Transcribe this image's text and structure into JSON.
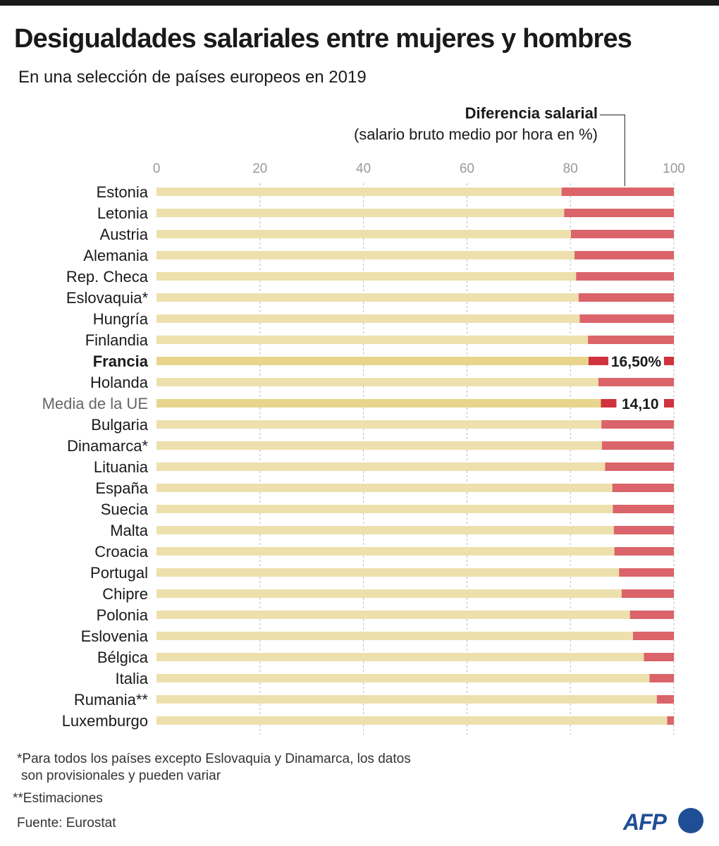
{
  "title": "Desigualdades salariales entre mujeres y hombres",
  "subtitle": "En una selección de países europeos en 2019",
  "legend": {
    "title": "Diferencia salarial",
    "subtitle": "(salario bruto medio por hora en %)"
  },
  "footnotes": {
    "note1_line1": "*Para todos los países excepto Eslovaquia y Dinamarca, los datos",
    "note1_line2": "son provisionales y pueden variar",
    "note2": "**Estimaciones",
    "source": "Fuente: Eurostat"
  },
  "logo": {
    "text": "AFP"
  },
  "colors": {
    "base": "#ede0ad",
    "base_highlight": "#e8d48d",
    "gap": "#da6469",
    "gap_highlight": "#d0333e",
    "grid": "#bbbbbb",
    "tick_text": "#999999"
  },
  "chart_data": {
    "type": "bar",
    "orientation": "horizontal",
    "stacked": true,
    "xlim": [
      0,
      100
    ],
    "xticks": [
      "0",
      "20",
      "40",
      "60",
      "80",
      "100"
    ],
    "grid": true,
    "categories": [
      "Estonia",
      "Letonia",
      "Austria",
      "Alemania",
      "Rep. Checa",
      "Eslovaquia*",
      "Hungría",
      "Finlandia",
      "Francia",
      "Holanda",
      "Media de la UE",
      "Bulgaria",
      "Dinamarca*",
      "Lituania",
      "España",
      "Suecia",
      "Malta",
      "Croacia",
      "Portugal",
      "Chipre",
      "Polonia",
      "Eslovenia",
      "Bélgica",
      "Italia",
      "Rumania**",
      "Luxemburgo"
    ],
    "gap_values": [
      21.7,
      21.2,
      19.9,
      19.2,
      18.9,
      18.4,
      18.2,
      16.6,
      16.5,
      14.6,
      14.1,
      14.0,
      13.9,
      13.3,
      11.9,
      11.8,
      11.6,
      11.5,
      10.6,
      10.1,
      8.5,
      7.9,
      5.8,
      4.7,
      3.3,
      1.3
    ],
    "highlight": [
      "Francia",
      "Media de la UE"
    ],
    "bold_labels": [
      "Francia"
    ],
    "gray_labels": [
      "Media de la UE"
    ],
    "value_labels": {
      "Francia": "16,50%",
      "Media de la UE": "14,10"
    }
  }
}
